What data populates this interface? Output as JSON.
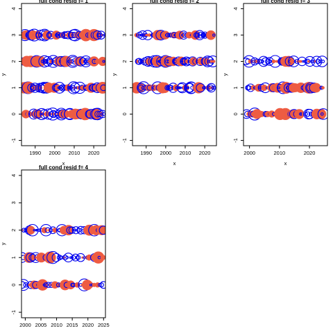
{
  "colors": {
    "positive": "#ee5c42",
    "negative": "#0000ee",
    "axis": "#000000",
    "background": "#ffffff"
  },
  "chart_data": [
    {
      "type": "scatter",
      "title": "full cond resid f= 1",
      "xlabel": "x",
      "ylabel": "y",
      "xlim": [
        1983,
        2026
      ],
      "ylim": [
        -1.2,
        4.2
      ],
      "xticks": [
        1990,
        2000,
        2010,
        2020
      ],
      "yticks": [
        -1,
        0,
        1,
        2,
        3,
        4
      ],
      "rows": [
        0,
        1,
        2,
        3
      ],
      "x_range": [
        1984,
        2025
      ],
      "marker_note": "bubble size = |residual|; filled orange = positive, open blue = negative"
    },
    {
      "type": "scatter",
      "title": "full cond resid f= 2",
      "xlabel": "x",
      "ylabel": "y",
      "xlim": [
        1983,
        2026
      ],
      "ylim": [
        -1.2,
        4.2
      ],
      "xticks": [
        1990,
        2000,
        2010,
        2020
      ],
      "yticks": [
        -1,
        0,
        1,
        2,
        3,
        4
      ],
      "rows": [
        1,
        2,
        3
      ],
      "x_range": [
        1985,
        2025
      ],
      "marker_note": "bubble size = |residual|; filled orange = positive, open blue = negative"
    },
    {
      "type": "scatter",
      "title": "full cond resid f= 3",
      "xlabel": "x",
      "ylabel": "y",
      "xlim": [
        1998,
        2026
      ],
      "ylim": [
        -1.2,
        4.2
      ],
      "xticks": [
        2000,
        2010,
        2020
      ],
      "yticks": [
        -1,
        0,
        1,
        2,
        3,
        4
      ],
      "rows": [
        0,
        1,
        2
      ],
      "x_range": [
        1999,
        2025
      ],
      "marker_note": "bubble size = |residual|; filled orange = positive, open blue = negative"
    },
    {
      "type": "scatter",
      "title": "full cond resid f= 4",
      "xlabel": "x",
      "ylabel": "y",
      "xlim": [
        1998.8,
        2025.6
      ],
      "ylim": [
        -1.2,
        4.2
      ],
      "xticks": [
        2000,
        2005,
        2010,
        2015,
        2020,
        2025
      ],
      "yticks": [
        -1,
        0,
        1,
        2,
        3,
        4
      ],
      "rows": [
        0,
        1,
        2
      ],
      "x_range": [
        1999,
        2025
      ],
      "marker_note": "bubble size = |residual|; filled orange = positive, open blue = negative"
    }
  ]
}
